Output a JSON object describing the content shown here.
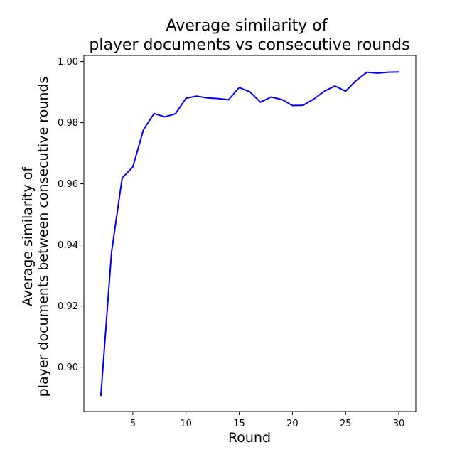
{
  "chart_data": {
    "type": "line",
    "title": [
      "Average similarity of",
      "player documents vs consecutive rounds"
    ],
    "xlabel": "Round",
    "ylabel": [
      "Average similarity of",
      "player documents between consecutive rounds"
    ],
    "xlim": [
      0.4,
      31.6
    ],
    "ylim": [
      0.8855,
      1.002
    ],
    "xticks": [
      5,
      10,
      15,
      20,
      25,
      30
    ],
    "yticks": [
      0.9,
      0.92,
      0.94,
      0.96,
      0.98,
      1.0
    ],
    "xtick_labels": [
      "5",
      "10",
      "15",
      "20",
      "25",
      "30"
    ],
    "ytick_labels": [
      "0.90",
      "0.92",
      "0.94",
      "0.96",
      "0.98",
      "1.00"
    ],
    "grid": false,
    "legend": "none",
    "series": [
      {
        "color": "#0000ff",
        "x": [
          2,
          3,
          4,
          5,
          6,
          7,
          8,
          9,
          10,
          11,
          12,
          13,
          14,
          15,
          16,
          17,
          18,
          19,
          20,
          21,
          22,
          23,
          24,
          25,
          26,
          27,
          28,
          29,
          30
        ],
        "y": [
          0.8908,
          0.9376,
          0.9619,
          0.9655,
          0.9777,
          0.983,
          0.9819,
          0.9829,
          0.988,
          0.9887,
          0.9881,
          0.9879,
          0.9875,
          0.9915,
          0.9901,
          0.9867,
          0.9884,
          0.9876,
          0.9856,
          0.9857,
          0.9877,
          0.9903,
          0.992,
          0.9903,
          0.9938,
          0.9965,
          0.9962,
          0.9965,
          0.9966
        ]
      }
    ]
  }
}
